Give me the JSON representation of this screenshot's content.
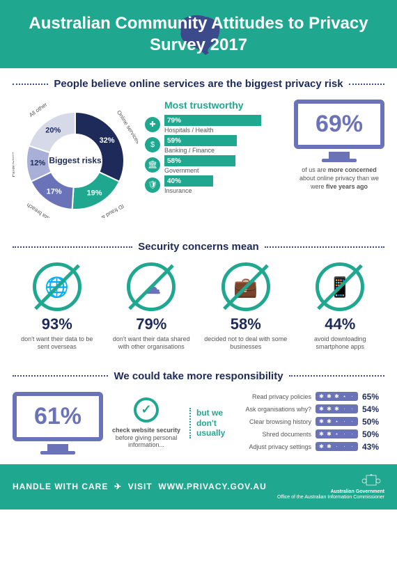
{
  "header": {
    "title": "Australian Community Attitudes to Privacy Survey 2017"
  },
  "section1": {
    "title": "People believe online services are the biggest privacy risk",
    "donut": {
      "center_label": "Biggest risks",
      "slices": [
        {
          "label": "Online services",
          "value": 32,
          "pct": "32%",
          "color": "#1e2a5a"
        },
        {
          "label": "ID fraud & theft",
          "value": 19,
          "pct": "19%",
          "color": "#1fa88f"
        },
        {
          "label": "Data breach",
          "value": 17,
          "pct": "17%",
          "color": "#6b73b8"
        },
        {
          "label": "Financials",
          "value": 12,
          "pct": "12%",
          "color": "#a8b0d8"
        },
        {
          "label": "All other",
          "value": 20,
          "pct": "20%",
          "color": "#d5d9e8"
        }
      ],
      "inner_radius": 38,
      "outer_radius": 70
    },
    "trustworthy": {
      "title": "Most trustworthy",
      "items": [
        {
          "icon": "plus",
          "label": "Hospitals / Health",
          "pct": "79%",
          "value": 79
        },
        {
          "icon": "dollar",
          "label": "Banking / Finance",
          "pct": "59%",
          "value": 59
        },
        {
          "icon": "gov",
          "label": "Government",
          "pct": "58%",
          "value": 58
        },
        {
          "icon": "shield",
          "label": "Insurance",
          "pct": "40%",
          "value": 40
        }
      ],
      "bar_color": "#1fa88f",
      "max": 100
    },
    "big_stat": {
      "value": "69%",
      "text_before": "of us are ",
      "bold1": "more concerned",
      "text_mid": " about online privacy than we were ",
      "bold2": "five years ago",
      "monitor_color": "#6b73b8"
    }
  },
  "section2": {
    "title": "Security concerns mean",
    "items": [
      {
        "pct": "93%",
        "text": "don't want their data to be sent overseas",
        "icon": "globe"
      },
      {
        "pct": "79%",
        "text": "don't want their data shared with other organisations",
        "icon": "share"
      },
      {
        "pct": "58%",
        "text": "decided not to deal with some businesses",
        "icon": "briefcase"
      },
      {
        "pct": "44%",
        "text": "avoid downloading smartphone apps",
        "icon": "phone"
      }
    ],
    "circle_color": "#1fa88f"
  },
  "section3": {
    "title": "We could take more responsibility",
    "left_stat": {
      "value": "61%",
      "monitor_color": "#6b73b8"
    },
    "check": {
      "bold": "check website security",
      "text": " before giving personal information..."
    },
    "but_we": "but we don't usually",
    "actions": [
      {
        "label": "Read privacy policies",
        "stars": 3.5,
        "pct": "65%"
      },
      {
        "label": "Ask organisations why?",
        "stars": 3,
        "pct": "54%"
      },
      {
        "label": "Clear browsing history",
        "stars": 2.5,
        "pct": "50%"
      },
      {
        "label": "Shred documents",
        "stars": 2.5,
        "pct": "50%"
      },
      {
        "label": "Adjust privacy settings",
        "stars": 2,
        "pct": "43%"
      }
    ],
    "star_bg": "#6b73b8"
  },
  "footer": {
    "handle": "HANDLE WITH CARE",
    "visit": "VISIT",
    "url": "WWW.PRIVACY.GOV.AU",
    "gov1": "Australian Government",
    "gov2": "Office of the Australian Information Commissioner"
  },
  "colors": {
    "teal": "#1fa88f",
    "navy": "#1e2a5a",
    "purple": "#6b73b8",
    "ltpurple": "#a8b0d8",
    "grey": "#d5d9e8"
  }
}
